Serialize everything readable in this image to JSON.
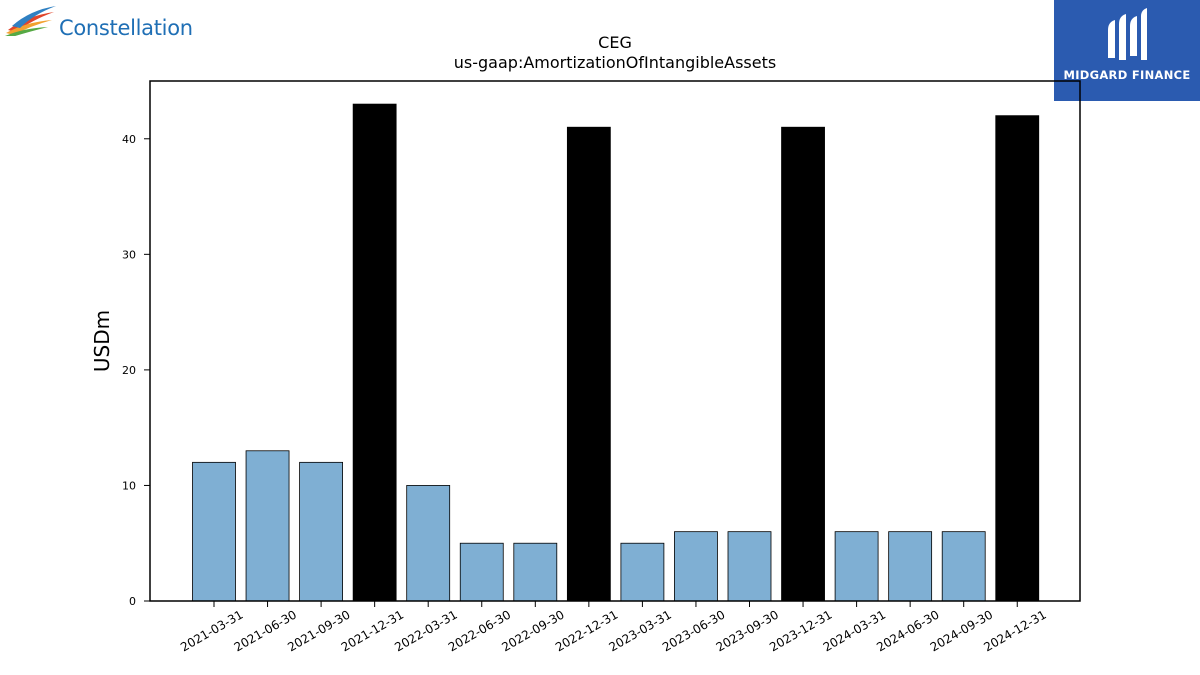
{
  "logos": {
    "left_text": "Constellation",
    "left_mark": "constellation-swoosh-logo",
    "right_text": "MIDGARD FINANCE",
    "right_mark": "midgard-mm-logo",
    "right_bg_color": "#2b5bb0"
  },
  "chart_data": {
    "type": "bar",
    "title": "CEG",
    "subtitle": "us-gaap:AmortizationOfIntangibleAssets",
    "xlabel": "",
    "ylabel": "USDm",
    "ylim": [
      0,
      45
    ],
    "yticks": [
      0,
      10,
      20,
      30,
      40
    ],
    "grid": false,
    "legend": "none",
    "categories": [
      "2021-03-31",
      "2021-06-30",
      "2021-09-30",
      "2021-12-31",
      "2022-03-31",
      "2022-06-30",
      "2022-09-30",
      "2022-12-31",
      "2023-03-31",
      "2023-06-30",
      "2023-09-30",
      "2023-12-31",
      "2024-03-31",
      "2024-06-30",
      "2024-09-30",
      "2024-12-31"
    ],
    "values": [
      12,
      13,
      12,
      43,
      10,
      5,
      5,
      41,
      5,
      6,
      6,
      41,
      6,
      6,
      6,
      42
    ],
    "annual": [
      false,
      false,
      false,
      true,
      false,
      false,
      false,
      true,
      false,
      false,
      false,
      true,
      false,
      false,
      false,
      true
    ],
    "colors": {
      "quarter": "#7fafd3",
      "annual": "#000000",
      "edge": "#000000"
    }
  }
}
